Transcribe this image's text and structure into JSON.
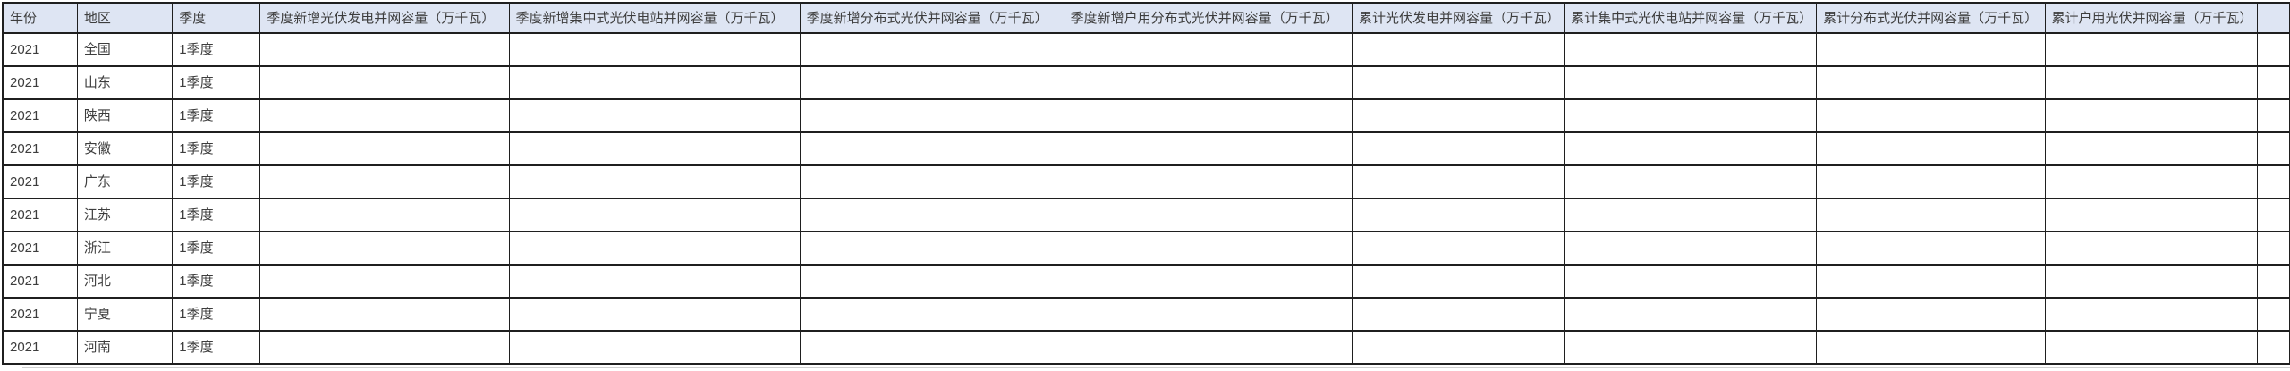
{
  "table": {
    "columns": [
      "年份",
      "地区",
      "季度",
      "季度新增光伏发电并网容量（万千瓦）",
      "季度新增集中式光伏电站并网容量（万千瓦）",
      "季度新增分布式光伏并网容量（万千瓦）",
      "季度新增户用分布式光伏并网容量（万千瓦）",
      "累计光伏发电并网容量（万千瓦）",
      "累计集中式光伏电站并网容量（万千瓦）",
      "累计分布式光伏并网容量（万千瓦）",
      "累计户用光伏并网容量（万千瓦）"
    ],
    "rows": [
      {
        "year": "2021",
        "region": "全国",
        "quarter": "1季度",
        "values": [
          "",
          "",
          "",
          "",
          "",
          "",
          "",
          ""
        ]
      },
      {
        "year": "2021",
        "region": "山东",
        "quarter": "1季度",
        "values": [
          "",
          "",
          "",
          "",
          "",
          "",
          "",
          ""
        ]
      },
      {
        "year": "2021",
        "region": "陕西",
        "quarter": "1季度",
        "values": [
          "",
          "",
          "",
          "",
          "",
          "",
          "",
          ""
        ]
      },
      {
        "year": "2021",
        "region": "安徽",
        "quarter": "1季度",
        "values": [
          "",
          "",
          "",
          "",
          "",
          "",
          "",
          ""
        ]
      },
      {
        "year": "2021",
        "region": "广东",
        "quarter": "1季度",
        "values": [
          "",
          "",
          "",
          "",
          "",
          "",
          "",
          ""
        ]
      },
      {
        "year": "2021",
        "region": "江苏",
        "quarter": "1季度",
        "values": [
          "",
          "",
          "",
          "",
          "",
          "",
          "",
          ""
        ]
      },
      {
        "year": "2021",
        "region": "浙江",
        "quarter": "1季度",
        "values": [
          "",
          "",
          "",
          "",
          "",
          "",
          "",
          ""
        ]
      },
      {
        "year": "2021",
        "region": "河北",
        "quarter": "1季度",
        "values": [
          "",
          "",
          "",
          "",
          "",
          "",
          "",
          ""
        ]
      },
      {
        "year": "2021",
        "region": "宁夏",
        "quarter": "1季度",
        "values": [
          "",
          "",
          "",
          "",
          "",
          "",
          "",
          ""
        ]
      },
      {
        "year": "2021",
        "region": "河南",
        "quarter": "1季度",
        "values": [
          "",
          "",
          "",
          "",
          "",
          "",
          "",
          ""
        ]
      }
    ]
  },
  "colors": {
    "header_bg": "#dee5f3",
    "grid": "#1f1f1f",
    "text": "#3d3d3d",
    "faint_line": "#cfcfcf"
  }
}
